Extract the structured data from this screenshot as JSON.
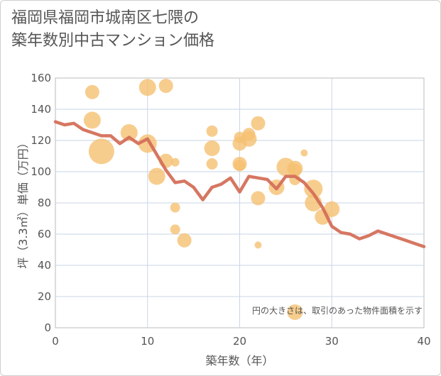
{
  "title_lines": [
    "福岡県福岡市城南区七隈の",
    "築年数別中古マンション価格"
  ],
  "chart_data": {
    "type": "scatter",
    "xlabel": "築年数（年）",
    "ylabel": "坪（3.3㎡）単価（万円）",
    "xlim": [
      0,
      40
    ],
    "ylim": [
      0,
      160
    ],
    "xticks": [
      0,
      10,
      20,
      30,
      40
    ],
    "yticks": [
      0,
      20,
      40,
      60,
      80,
      100,
      120,
      140,
      160
    ],
    "grid": true,
    "note": "円の大きさは、取引のあった物件面積を示す",
    "colors": {
      "bubble": "#f5c172",
      "line": "#d4705a",
      "grid": "#c9d6e6",
      "axis": "#bbbbbb"
    },
    "points": [
      {
        "x": 4,
        "y": 151,
        "s": 10
      },
      {
        "x": 4,
        "y": 133,
        "s": 12
      },
      {
        "x": 5,
        "y": 113,
        "s": 18
      },
      {
        "x": 8,
        "y": 125,
        "s": 12
      },
      {
        "x": 10,
        "y": 154,
        "s": 12
      },
      {
        "x": 10,
        "y": 118,
        "s": 13
      },
      {
        "x": 11,
        "y": 97,
        "s": 12
      },
      {
        "x": 12,
        "y": 155,
        "s": 10
      },
      {
        "x": 12,
        "y": 107,
        "s": 10
      },
      {
        "x": 13,
        "y": 106,
        "s": 6
      },
      {
        "x": 13,
        "y": 77,
        "s": 7
      },
      {
        "x": 13,
        "y": 63,
        "s": 7
      },
      {
        "x": 14,
        "y": 56,
        "s": 10
      },
      {
        "x": 17,
        "y": 126,
        "s": 8
      },
      {
        "x": 17,
        "y": 115,
        "s": 11
      },
      {
        "x": 17,
        "y": 105,
        "s": 8
      },
      {
        "x": 20,
        "y": 122,
        "s": 8
      },
      {
        "x": 20,
        "y": 118,
        "s": 10
      },
      {
        "x": 20,
        "y": 105,
        "s": 10
      },
      {
        "x": 20,
        "y": 104,
        "s": 8
      },
      {
        "x": 21,
        "y": 124,
        "s": 9
      },
      {
        "x": 21,
        "y": 121,
        "s": 11
      },
      {
        "x": 22,
        "y": 131,
        "s": 10
      },
      {
        "x": 22,
        "y": 83,
        "s": 10
      },
      {
        "x": 22,
        "y": 53,
        "s": 5
      },
      {
        "x": 24,
        "y": 90,
        "s": 11
      },
      {
        "x": 25,
        "y": 103,
        "s": 13
      },
      {
        "x": 26,
        "y": 102,
        "s": 11
      },
      {
        "x": 26,
        "y": 101,
        "s": 9
      },
      {
        "x": 26,
        "y": 95,
        "s": 8
      },
      {
        "x": 26,
        "y": 10,
        "s": 11
      },
      {
        "x": 27,
        "y": 112,
        "s": 5
      },
      {
        "x": 28,
        "y": 89,
        "s": 13
      },
      {
        "x": 28,
        "y": 80,
        "s": 12
      },
      {
        "x": 29,
        "y": 71,
        "s": 11
      },
      {
        "x": 30,
        "y": 76,
        "s": 11
      }
    ],
    "line": {
      "x": [
        0,
        1,
        2,
        3,
        4,
        5,
        6,
        7,
        8,
        9,
        10,
        11,
        12,
        13,
        14,
        15,
        16,
        17,
        18,
        19,
        20,
        21,
        22,
        23,
        24,
        25,
        26,
        27,
        28,
        29,
        30,
        31,
        32,
        33,
        34,
        35,
        36,
        37,
        38,
        39,
        40
      ],
      "y": [
        132,
        130,
        131,
        127,
        125,
        123,
        123,
        118,
        122,
        118,
        121,
        111,
        101,
        93,
        94,
        90,
        82,
        90,
        92,
        96,
        87,
        97,
        96,
        95,
        89,
        97,
        97,
        93,
        86,
        77,
        65,
        61,
        60,
        57,
        59,
        62,
        60,
        58,
        56,
        54,
        52
      ]
    }
  }
}
